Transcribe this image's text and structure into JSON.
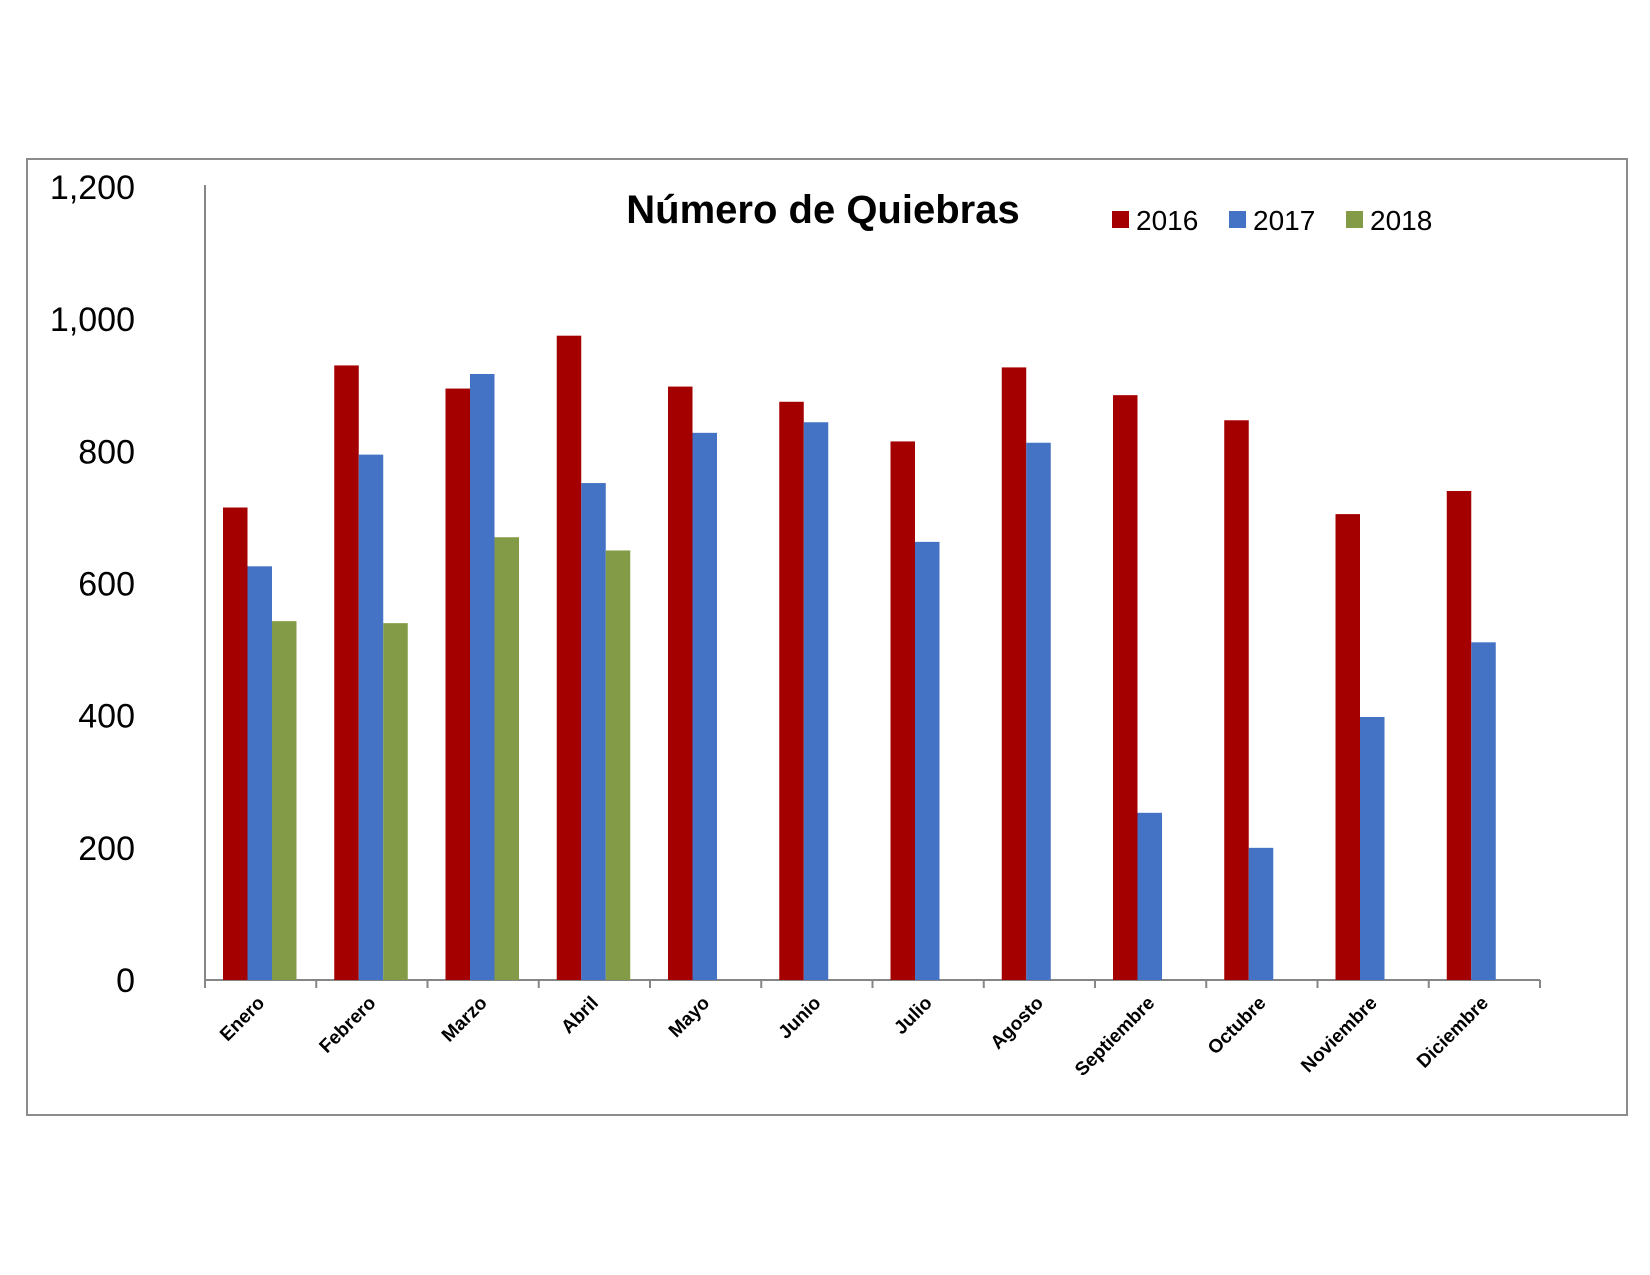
{
  "chart_data": {
    "type": "bar",
    "title": "Número de Quiebras",
    "xlabel": "",
    "ylabel": "",
    "categories": [
      "Enero",
      "Febrero",
      "Marzo",
      "Abril",
      "Mayo",
      "Junio",
      "Julio",
      "Agosto",
      "Septiembre",
      "Octubre",
      "Noviembre",
      "Diciembre"
    ],
    "series": [
      {
        "name": "2016",
        "color": "#a50000",
        "values": [
          715,
          930,
          895,
          975,
          898,
          875,
          815,
          927,
          885,
          847,
          705,
          740
        ]
      },
      {
        "name": "2017",
        "color": "#4472c4",
        "values": [
          626,
          795,
          917,
          752,
          828,
          844,
          663,
          813,
          253,
          200,
          398,
          511
        ]
      },
      {
        "name": "2018",
        "color": "#839b46",
        "values": [
          543,
          540,
          670,
          650,
          null,
          null,
          null,
          null,
          null,
          null,
          null,
          null
        ]
      }
    ],
    "ylim": [
      0,
      1200
    ],
    "yticks": [
      0,
      200,
      400,
      600,
      800,
      1000,
      1200
    ],
    "ytick_labels": [
      "0",
      "200",
      "400",
      "600",
      "800",
      "1,000",
      "1,200"
    ],
    "grid": false,
    "legend_position": "top-right"
  }
}
